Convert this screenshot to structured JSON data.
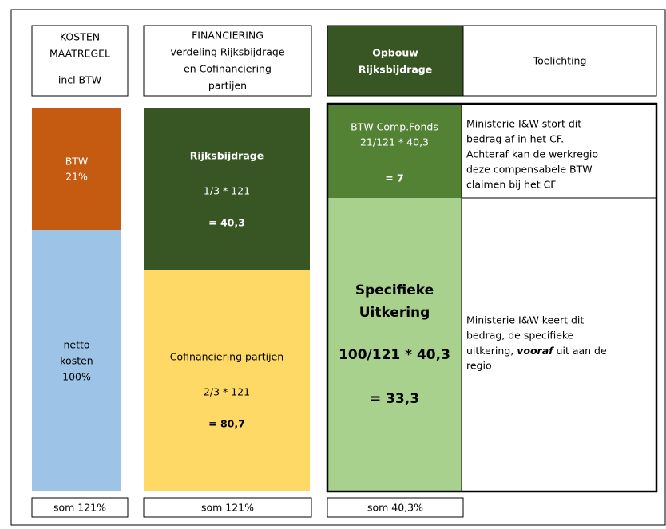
{
  "columns": [
    {
      "header": [
        "KOSTEN",
        "MAATREGEL",
        "incl BTW"
      ],
      "blocks": [
        {
          "lines": [
            "BTW",
            "21%"
          ]
        },
        {
          "lines": [
            "netto",
            "kosten",
            "100%"
          ]
        }
      ],
      "footer": "som 121%"
    },
    {
      "header": [
        "FINANCIERING",
        "verdeling Rijksbijdrage",
        "en Cofinanciering",
        "partijen"
      ],
      "blocks": [
        {
          "lines": [
            "Rijksbijdrage",
            "1/3 * 121",
            "= 40,3"
          ]
        },
        {
          "lines": [
            "Cofinanciering partijen",
            "2/3 * 121",
            "= 80,7"
          ]
        }
      ],
      "footer": "som 121%"
    },
    {
      "header": [
        "Opbouw",
        "Rijksbijdrage"
      ],
      "blocks": [
        {
          "lines": [
            "BTW Comp.Fonds",
            "21/121 * 40,3",
            "= 7"
          ]
        },
        {
          "lines": [
            "Specifieke",
            "Uitkering",
            "100/121 * 40,3",
            "= 33,3"
          ]
        }
      ],
      "footer": "som 40,3%"
    }
  ],
  "explanation": {
    "header": "Toelichting",
    "top": [
      "Ministerie I&W stort dit",
      "bedrag af in het CF.",
      "Achteraf kan de werkregio",
      "deze compensabele BTW",
      "claimen bij het CF"
    ],
    "bottom": {
      "line1": "Ministerie I&W keert dit",
      "line2": "bedrag, de specifieke",
      "line3_pre": "uitkering, ",
      "line3_em": "vooraf",
      "line3_post": " uit aan de",
      "line4": "regio"
    }
  }
}
